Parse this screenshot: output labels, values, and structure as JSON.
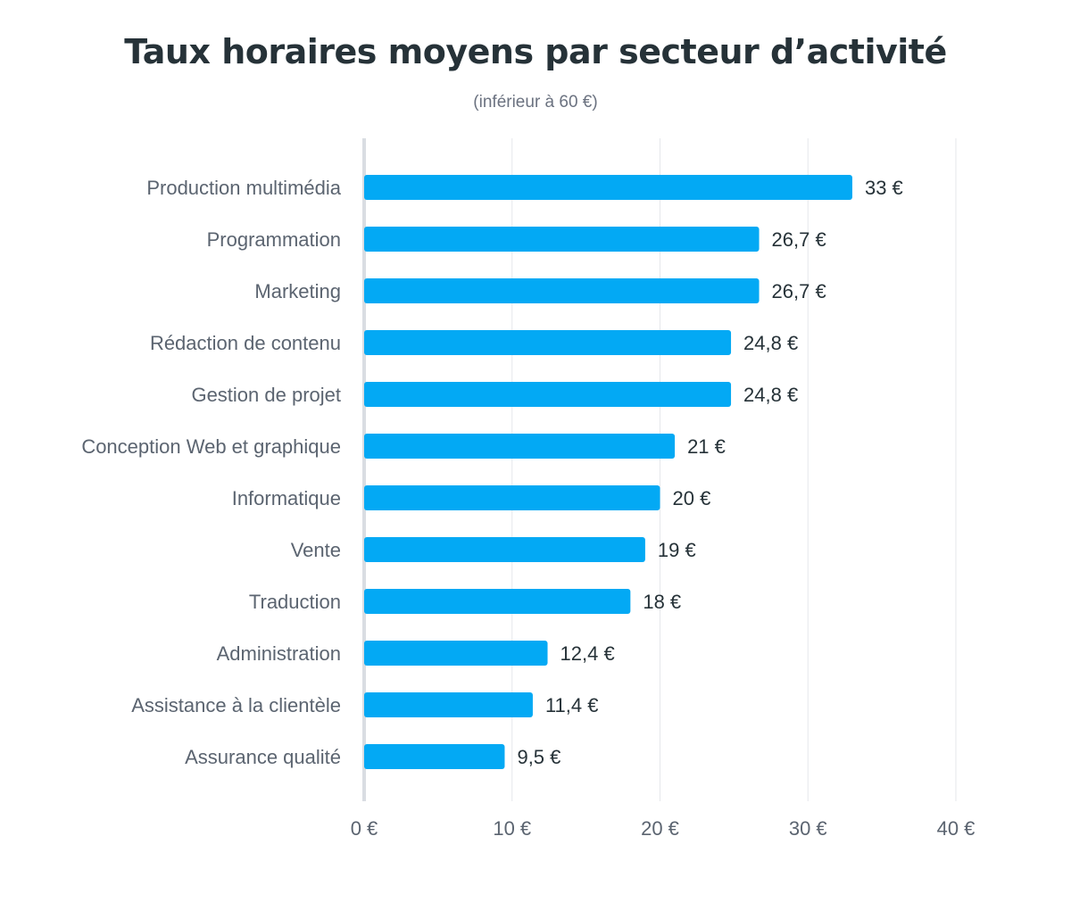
{
  "chart_data": {
    "type": "bar",
    "orientation": "horizontal",
    "title": "Taux horaires moyens par secteur d’activité",
    "subtitle": "(inférieur à 60 €)",
    "categories": [
      "Production multimédia",
      "Programmation",
      "Marketing",
      "Rédaction de contenu",
      "Gestion de projet",
      "Conception Web et graphique",
      "Informatique",
      "Vente",
      "Traduction",
      "Administration",
      "Assistance à la clientèle",
      "Assurance qualité"
    ],
    "values": [
      33,
      26.7,
      26.7,
      24.8,
      24.8,
      21,
      20,
      19,
      18,
      12.4,
      11.4,
      9.5
    ],
    "value_labels": [
      "33 €",
      "26,7 €",
      "26,7 €",
      "24,8 €",
      "24,8 €",
      "21 €",
      "20 €",
      "19 €",
      "18 €",
      "12,4 €",
      "11,4 €",
      "9,5 €"
    ],
    "xlim": [
      0,
      40
    ],
    "xticks": [
      0,
      10,
      20,
      30,
      40
    ],
    "xtick_labels": [
      "0 €",
      "10 €",
      "20 €",
      "30 €",
      "40 €"
    ],
    "grid": true,
    "legend": "none",
    "colors": {
      "bar": "#03a9f4",
      "grid": "#e5e7eb",
      "axis": "#d9dde2",
      "title": "#263238",
      "subtitle": "#6b7280"
    }
  }
}
